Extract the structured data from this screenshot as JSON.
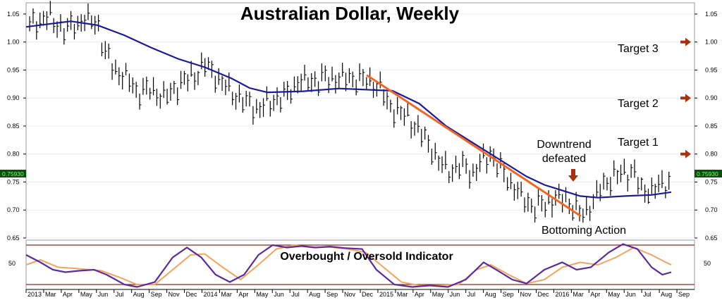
{
  "chart_data": {
    "type": "line",
    "title": "Australian Dollar, Weekly",
    "price_panel": {
      "ylim": [
        0.65,
        1.07
      ],
      "yticks": [
        "1.05",
        "1.00",
        "0.95",
        "0.90",
        "0.85",
        "0.80",
        "0.75",
        "0.70",
        "0.65"
      ],
      "current_price_label": "0.75930",
      "moving_average": [
        [
          2013.0,
          1.027
        ],
        [
          2013.25,
          1.037
        ],
        [
          2013.4,
          1.03
        ],
        [
          2013.55,
          1.012
        ],
        [
          2013.7,
          0.99
        ],
        [
          2013.85,
          0.97
        ],
        [
          2014.0,
          0.955
        ],
        [
          2014.15,
          0.935
        ],
        [
          2014.25,
          0.918
        ],
        [
          2014.35,
          0.91
        ],
        [
          2014.55,
          0.912
        ],
        [
          2014.75,
          0.917
        ],
        [
          2014.9,
          0.915
        ],
        [
          2015.05,
          0.913
        ],
        [
          2015.2,
          0.89
        ],
        [
          2015.35,
          0.85
        ],
        [
          2015.5,
          0.82
        ],
        [
          2015.65,
          0.79
        ],
        [
          2015.8,
          0.76
        ],
        [
          2015.9,
          0.745
        ],
        [
          2016.0,
          0.735
        ],
        [
          2016.1,
          0.725
        ],
        [
          2016.2,
          0.722
        ],
        [
          2016.35,
          0.725
        ],
        [
          2016.5,
          0.727
        ],
        [
          2016.61,
          0.732
        ]
      ],
      "price_bars": [
        [
          2013.02,
          1.03
        ],
        [
          2013.12,
          1.045
        ],
        [
          2013.22,
          1.02
        ],
        [
          2013.32,
          1.04
        ],
        [
          2013.4,
          1.035
        ],
        [
          2013.44,
          0.98
        ],
        [
          2013.5,
          0.95
        ],
        [
          2013.58,
          0.93
        ],
        [
          2013.62,
          0.91
        ],
        [
          2013.7,
          0.915
        ],
        [
          2013.78,
          0.9
        ],
        [
          2013.86,
          0.925
        ],
        [
          2013.94,
          0.94
        ],
        [
          2014.0,
          0.96
        ],
        [
          2014.06,
          0.94
        ],
        [
          2014.13,
          0.915
        ],
        [
          2014.21,
          0.895
        ],
        [
          2014.3,
          0.88
        ],
        [
          2014.38,
          0.895
        ],
        [
          2014.46,
          0.905
        ],
        [
          2014.52,
          0.93
        ],
        [
          2014.6,
          0.93
        ],
        [
          2014.68,
          0.935
        ],
        [
          2014.76,
          0.935
        ],
        [
          2014.84,
          0.935
        ],
        [
          2014.92,
          0.93
        ],
        [
          2014.98,
          0.92
        ],
        [
          2015.02,
          0.89
        ],
        [
          2015.08,
          0.875
        ],
        [
          2015.14,
          0.865
        ],
        [
          2015.2,
          0.84
        ],
        [
          2015.26,
          0.815
        ],
        [
          2015.32,
          0.78
        ],
        [
          2015.38,
          0.77
        ],
        [
          2015.44,
          0.78
        ],
        [
          2015.5,
          0.765
        ],
        [
          2015.56,
          0.79
        ],
        [
          2015.6,
          0.8
        ],
        [
          2015.66,
          0.77
        ],
        [
          2015.72,
          0.745
        ],
        [
          2015.78,
          0.72
        ],
        [
          2015.84,
          0.705
        ],
        [
          2015.9,
          0.71
        ],
        [
          2015.96,
          0.72
        ],
        [
          2016.02,
          0.72
        ],
        [
          2016.08,
          0.7
        ],
        [
          2016.11,
          0.69
        ],
        [
          2016.16,
          0.71
        ],
        [
          2016.22,
          0.74
        ],
        [
          2016.28,
          0.76
        ],
        [
          2016.34,
          0.765
        ],
        [
          2016.4,
          0.77
        ],
        [
          2016.44,
          0.735
        ],
        [
          2016.5,
          0.735
        ],
        [
          2016.56,
          0.745
        ],
        [
          2016.61,
          0.755
        ]
      ],
      "trendline": [
        [
          2014.91,
          0.94
        ],
        [
          2016.1,
          0.69
        ]
      ],
      "annotations": {
        "target3": "Target 3",
        "target2": "Target 2",
        "target1": "Target 1",
        "downtrend": [
          "Downtrend",
          "defeated"
        ],
        "bottoming": "Bottoming Action"
      },
      "target_levels": [
        1.0,
        0.9,
        0.8
      ]
    },
    "indicator_panel": {
      "label": "Overbought / Oversold Indicator",
      "ylim": [
        0,
        100
      ],
      "ytick": "50",
      "overbought": 90,
      "oversold": 10,
      "fast_line": [
        [
          2013.0,
          70
        ],
        [
          2013.08,
          55
        ],
        [
          2013.15,
          40
        ],
        [
          2013.22,
          35
        ],
        [
          2013.3,
          38
        ],
        [
          2013.38,
          40
        ],
        [
          2013.45,
          30
        ],
        [
          2013.55,
          10
        ],
        [
          2013.62,
          5
        ],
        [
          2013.72,
          15
        ],
        [
          2013.82,
          65
        ],
        [
          2013.9,
          85
        ],
        [
          2013.98,
          65
        ],
        [
          2014.06,
          30
        ],
        [
          2014.14,
          15
        ],
        [
          2014.22,
          30
        ],
        [
          2014.3,
          70
        ],
        [
          2014.38,
          90
        ],
        [
          2014.46,
          85
        ],
        [
          2014.54,
          88
        ],
        [
          2014.62,
          85
        ],
        [
          2014.7,
          87
        ],
        [
          2014.78,
          84
        ],
        [
          2014.88,
          82
        ],
        [
          2014.96,
          40
        ],
        [
          2015.06,
          10
        ],
        [
          2015.16,
          5
        ],
        [
          2015.26,
          8
        ],
        [
          2015.36,
          5
        ],
        [
          2015.46,
          20
        ],
        [
          2015.56,
          55
        ],
        [
          2015.64,
          38
        ],
        [
          2015.72,
          20
        ],
        [
          2015.8,
          12
        ],
        [
          2015.9,
          40
        ],
        [
          2016.0,
          55
        ],
        [
          2016.08,
          40
        ],
        [
          2016.16,
          45
        ],
        [
          2016.26,
          75
        ],
        [
          2016.34,
          92
        ],
        [
          2016.42,
          82
        ],
        [
          2016.5,
          45
        ],
        [
          2016.56,
          30
        ],
        [
          2016.61,
          35
        ]
      ],
      "slow_line": [
        [
          2013.0,
          50
        ],
        [
          2013.08,
          60
        ],
        [
          2013.18,
          45
        ],
        [
          2013.3,
          42
        ],
        [
          2013.42,
          38
        ],
        [
          2013.52,
          25
        ],
        [
          2013.62,
          10
        ],
        [
          2013.72,
          10
        ],
        [
          2013.82,
          40
        ],
        [
          2013.92,
          70
        ],
        [
          2014.0,
          72
        ],
        [
          2014.1,
          45
        ],
        [
          2014.2,
          20
        ],
        [
          2014.3,
          50
        ],
        [
          2014.4,
          82
        ],
        [
          2014.5,
          90
        ],
        [
          2014.6,
          85
        ],
        [
          2014.7,
          86
        ],
        [
          2014.8,
          82
        ],
        [
          2014.9,
          75
        ],
        [
          2015.0,
          45
        ],
        [
          2015.1,
          15
        ],
        [
          2015.2,
          8
        ],
        [
          2015.3,
          8
        ],
        [
          2015.42,
          10
        ],
        [
          2015.52,
          40
        ],
        [
          2015.6,
          50
        ],
        [
          2015.7,
          30
        ],
        [
          2015.8,
          12
        ],
        [
          2015.9,
          20
        ],
        [
          2016.0,
          45
        ],
        [
          2016.1,
          55
        ],
        [
          2016.2,
          50
        ],
        [
          2016.3,
          65
        ],
        [
          2016.4,
          85
        ],
        [
          2016.5,
          70
        ],
        [
          2016.58,
          55
        ],
        [
          2016.61,
          50
        ]
      ]
    },
    "x_axis": {
      "xlim": [
        2013.0,
        2016.74
      ],
      "months": [
        "2013",
        "Mar",
        "Apr",
        "May",
        "Jun",
        "Jul",
        "Aug",
        "Sep",
        "Nov",
        "Dec",
        "2014",
        "Mar",
        "Apr",
        "May",
        "Jun",
        "Jul",
        "Aug",
        "Sep",
        "Nov",
        "Dec",
        "2015",
        "Mar",
        "Apr",
        "May",
        "Jun",
        "Jul",
        "Aug",
        "Sep",
        "Nov",
        "Dec",
        "2016",
        "Mar",
        "Apr",
        "May",
        "Jun",
        "Jul",
        "Aug",
        "Sep"
      ]
    },
    "colors": {
      "moving_average": "#1a1a9c",
      "trendline": "#f26522",
      "fast_line": "#5b2a9e",
      "slow_line": "#f5a25a",
      "band": "#8b2a1a",
      "arrow": "#a8320e",
      "price_tag": "#0b4d0b"
    }
  }
}
